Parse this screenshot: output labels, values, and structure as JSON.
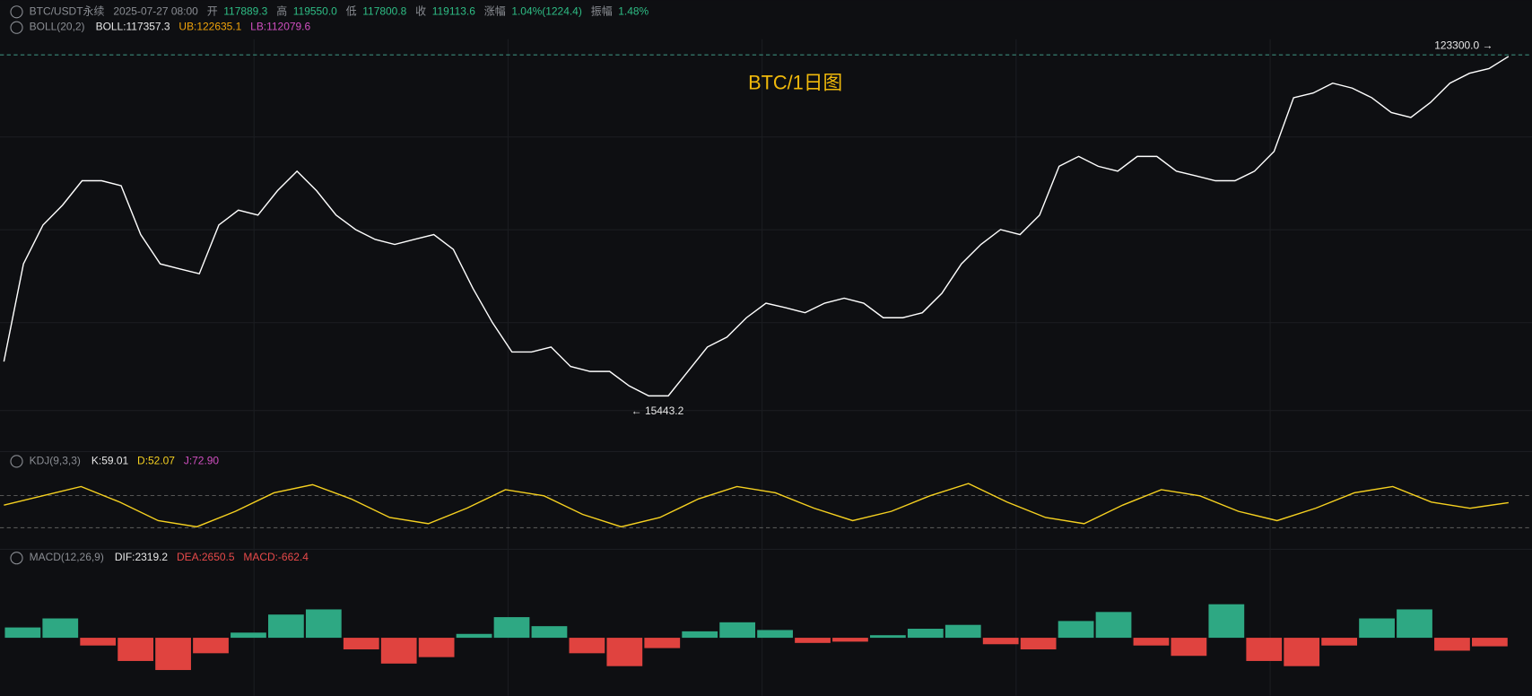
{
  "header": {
    "symbol": "BTC/USDT永续",
    "datetime": "2025-07-27 08:00",
    "open_label": "开",
    "open": "117889.3",
    "high_label": "高",
    "high": "119550.0",
    "low_label": "低",
    "low": "117800.8",
    "close_label": "收",
    "close": "119113.6",
    "change_label": "涨幅",
    "change": "1.04%(1224.4)",
    "amplitude_label": "振幅",
    "amplitude": "1.48%"
  },
  "boll": {
    "name": "BOLL(20,2)",
    "mid": "BOLL:117357.3",
    "ub": "UB:122635.1",
    "lb": "LB:112079.6"
  },
  "kdj_header": {
    "name": "KDJ(9,3,3)",
    "k": "K:59.01",
    "d": "D:52.07",
    "j": "J:72.90"
  },
  "macd_header": {
    "name": "MACD(12,26,9)",
    "dif": "DIF:2319.2",
    "dea": "DEA:2650.5",
    "macd": "MACD:-662.4"
  },
  "annotations": {
    "title": "BTC/1日图",
    "max": "123300.0 →",
    "min": "← 15443.2"
  },
  "chart_data": [
    {
      "type": "line",
      "ylim": [
        3600,
        128000
      ],
      "series": [
        {
          "color": "#ffffff",
          "values": [
            30300,
            59900,
            71700,
            77700,
            85100,
            85100,
            83600,
            68800,
            59900,
            58400,
            56900,
            71700,
            76200,
            74700,
            82100,
            88000,
            82100,
            74700,
            70300,
            67300,
            65800,
            67300,
            68800,
            64300,
            52500,
            42100,
            33200,
            33200,
            34700,
            28800,
            27300,
            27300,
            22900,
            19900,
            19900,
            27300,
            34700,
            37700,
            43600,
            48000,
            46600,
            45100,
            48000,
            49500,
            48000,
            43600,
            43600,
            45100,
            51000,
            59900,
            65800,
            70300,
            68800,
            74700,
            89500,
            92500,
            89500,
            88000,
            92500,
            92500,
            88000,
            86600,
            85100,
            85100,
            88000,
            94000,
            110300,
            111700,
            114700,
            113200,
            110300,
            105800,
            104300,
            108800,
            114700,
            117700,
            119100,
            122800
          ]
        }
      ]
    },
    {
      "type": "line",
      "ylim": [
        -10,
        110
      ],
      "series": [
        {
          "color": "#f5d020",
          "values": [
            55,
            70,
            85,
            60,
            30,
            20,
            45,
            75,
            88,
            65,
            35,
            25,
            50,
            80,
            70,
            40,
            20,
            35,
            65,
            85,
            75,
            50,
            30,
            45,
            70,
            90,
            60,
            35,
            25,
            55,
            80,
            70,
            45,
            30,
            50,
            75,
            85,
            60,
            50,
            59
          ]
        }
      ]
    },
    {
      "type": "bar",
      "ylim": [
        -4500,
        5500
      ],
      "pos_color": "#2ea883",
      "neg_color": "#e0433f",
      "values": [
        800,
        1500,
        -600,
        -1800,
        -2500,
        -1200,
        400,
        1800,
        2200,
        -900,
        -2000,
        -1500,
        300,
        1600,
        900,
        -1200,
        -2200,
        -800,
        500,
        1200,
        600,
        -400,
        -300,
        200,
        700,
        1000,
        -500,
        -900,
        1300,
        2000,
        -600,
        -1400,
        2600,
        -1800,
        -2200,
        -600,
        1500,
        2200,
        -1000,
        -662.4
      ]
    }
  ]
}
